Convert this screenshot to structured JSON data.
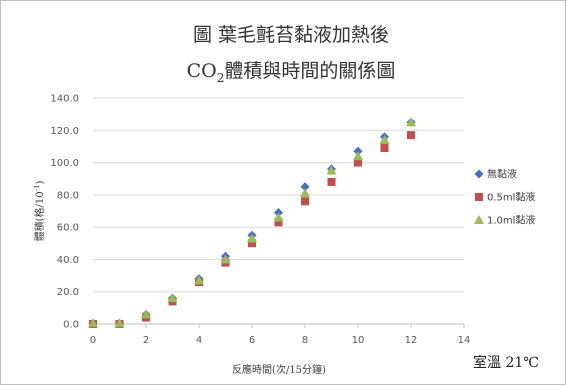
{
  "chart_data": {
    "type": "scatter",
    "title_line1": "圖 葉毛氈苔黏液加熱後",
    "title_line2_prefix": "CO",
    "title_line2_sub": "2",
    "title_line2_suffix": "體積與時間的關係圖",
    "xlabel": "反應時間(次/15分鐘)",
    "ylabel_text": "體積(格/10",
    "ylabel_sup": "-1",
    "ylabel_close": ")",
    "xlim": [
      0,
      14
    ],
    "ylim": [
      0,
      140
    ],
    "x_ticks": [
      0,
      2,
      4,
      6,
      8,
      10,
      12,
      14
    ],
    "y_ticks": [
      "0.0",
      "20.0",
      "40.0",
      "60.0",
      "80.0",
      "100.0",
      "120.0",
      "140.0"
    ],
    "grid": "horizontal",
    "legend_position": "right",
    "x": [
      0,
      1,
      2,
      3,
      4,
      5,
      6,
      7,
      8,
      9,
      10,
      11,
      12
    ],
    "series": [
      {
        "name": "無黏液",
        "marker": "diamond",
        "color": "#4472C4",
        "values": [
          0.5,
          0.5,
          6,
          16,
          28,
          42,
          55,
          69,
          85,
          96,
          107,
          116,
          125
        ]
      },
      {
        "name": "0.5ml黏液",
        "marker": "square",
        "color": "#C0504D",
        "values": [
          0,
          0,
          4,
          14,
          26,
          38,
          50,
          63,
          76,
          88,
          100,
          109,
          117
        ]
      },
      {
        "name": "1.0ml黏液",
        "marker": "triangle",
        "color": "#9BBB59",
        "values": [
          0.5,
          0.5,
          6,
          16,
          27,
          40,
          53,
          66,
          81,
          95,
          104,
          114,
          125
        ]
      }
    ]
  },
  "note": "室溫 21℃"
}
